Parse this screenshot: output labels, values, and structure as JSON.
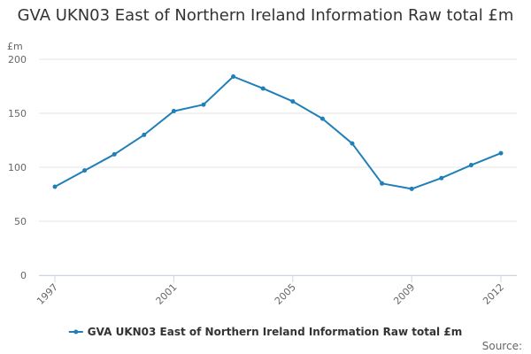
{
  "title": "GVA UKN03 East of Northern Ireland Information Raw total £m",
  "credits": "Source:",
  "chart_data": {
    "type": "line",
    "title": "GVA UKN03 East of Northern Ireland Information Raw total £m",
    "ylabel": "£m",
    "xlabel": "",
    "ylim": [
      0,
      200
    ],
    "yticks": [
      0,
      50,
      100,
      150,
      200
    ],
    "xticks": [
      1997,
      2001,
      2005,
      2009,
      2012
    ],
    "x": [
      1997,
      1998,
      1999,
      2000,
      2001,
      2002,
      2003,
      2004,
      2005,
      2006,
      2007,
      2008,
      2009,
      2010,
      2011,
      2012
    ],
    "grid": true,
    "legend": "bottom-center",
    "series": [
      {
        "name": "GVA UKN03 East of Northern Ireland Information Raw total £m",
        "color": "#1f7fb8",
        "values": [
          82,
          97,
          112,
          130,
          152,
          158,
          184,
          173,
          161,
          145,
          122,
          85,
          80,
          90,
          102,
          113
        ]
      }
    ]
  }
}
